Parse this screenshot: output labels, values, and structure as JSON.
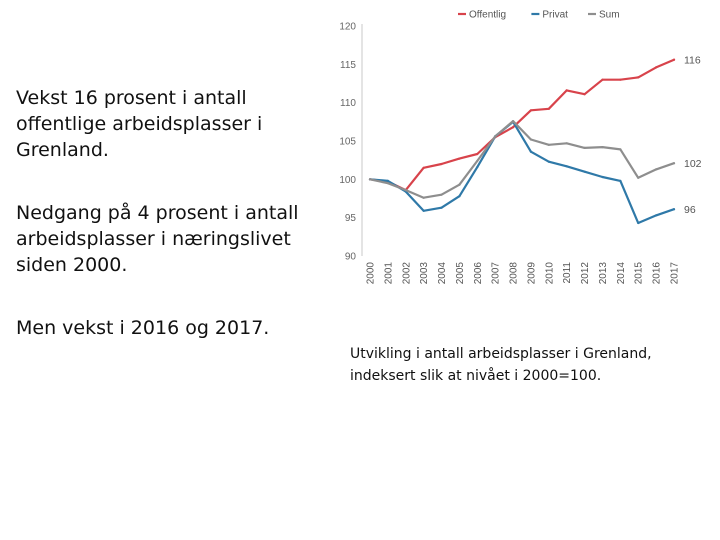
{
  "slide": {
    "paragraph1": "Vekst 16 prosent i antall offentlige arbeidsplasser i Grenland.",
    "paragraph2": "Nedgang på 4 prosent i antall arbeidsplasser i næringslivet siden 2000.",
    "paragraph3": "Men vekst i 2016 og 2017.",
    "caption": "Utvikling i antall arbeidsplasser i Grenland, indeksert slik at nivået i 2000=100."
  },
  "chart_data": {
    "type": "line",
    "title": "",
    "xlabel": "",
    "ylabel": "",
    "x": [
      "2000",
      "2001",
      "2002",
      "2003",
      "2004",
      "2005",
      "2006",
      "2007",
      "2008",
      "2009",
      "2010",
      "2011",
      "2012",
      "2013",
      "2014",
      "2015",
      "2016",
      "2017"
    ],
    "ylim": [
      90,
      120
    ],
    "yticks": [
      90,
      95,
      100,
      105,
      110,
      115,
      120
    ],
    "grid": false,
    "legend_position": "top",
    "series": [
      {
        "name": "Offentlig",
        "color": "#d8434b",
        "end_label": "116",
        "values": [
          100,
          99.7,
          98.6,
          101.5,
          102.0,
          102.7,
          103.3,
          105.5,
          106.8,
          109.0,
          109.2,
          111.6,
          111.1,
          113.0,
          113.0,
          113.3,
          114.6,
          115.6
        ]
      },
      {
        "name": "Privat",
        "color": "#2f79a8",
        "end_label": "96",
        "values": [
          100,
          99.8,
          98.4,
          95.9,
          96.3,
          97.8,
          101.6,
          105.6,
          107.5,
          103.6,
          102.3,
          101.7,
          101.0,
          100.3,
          99.8,
          94.3,
          95.3,
          96.1
        ]
      },
      {
        "name": "Sum",
        "color": "#8e8e8e",
        "end_label": "102",
        "values": [
          100,
          99.5,
          98.6,
          97.6,
          98.0,
          99.3,
          102.4,
          105.6,
          107.6,
          105.2,
          104.5,
          104.7,
          104.1,
          104.2,
          103.9,
          100.2,
          101.3,
          102.1
        ]
      }
    ]
  }
}
